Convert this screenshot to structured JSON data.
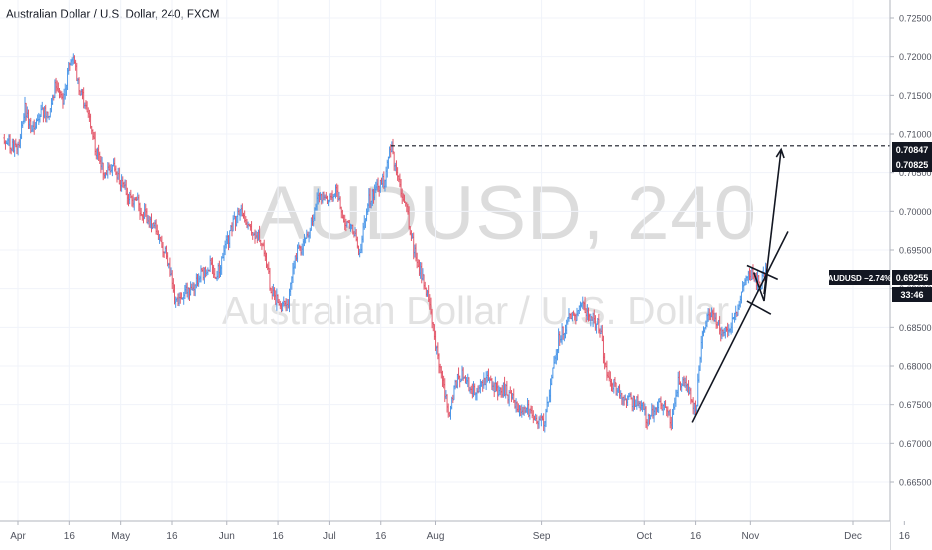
{
  "header": {
    "title": "Australian Dollar / U.S. Dollar, 240, FXCM"
  },
  "watermark": {
    "symbol": "AUDUSD, 240",
    "description": "Australian Dollar / U.S. Dollar"
  },
  "chart_data": {
    "type": "bar",
    "style": "ohlc",
    "title": "Australian Dollar / U.S. Dollar, 240, FXCM",
    "xlabel": "",
    "ylabel": "",
    "ylim": [
      0.664,
      0.727
    ],
    "grid": true,
    "colors": {
      "up": "#4c97e8",
      "down": "#e3586a",
      "axis_text": "#50535e",
      "grid": "#f0f3fa",
      "line": "#131722"
    },
    "y_ticks": [
      "0.72500",
      "0.72000",
      "0.71500",
      "0.71000",
      "0.70500",
      "0.70000",
      "0.69500",
      "0.69000",
      "0.68500",
      "0.68000",
      "0.67500",
      "0.67000",
      "0.66500"
    ],
    "x_ticks": [
      "Apr",
      "16",
      "May",
      "16",
      "Jun",
      "16",
      "Jul",
      "16",
      "Aug",
      "Sep",
      "Oct",
      "16",
      "Nov",
      "Dec",
      "16"
    ],
    "price_path": [
      [
        "2019-03-28",
        0.7095
      ],
      [
        "2019-04-01",
        0.708
      ],
      [
        "2019-04-03",
        0.7135
      ],
      [
        "2019-04-05",
        0.71
      ],
      [
        "2019-04-08",
        0.713
      ],
      [
        "2019-04-10",
        0.7125
      ],
      [
        "2019-04-12",
        0.7165
      ],
      [
        "2019-04-14",
        0.714
      ],
      [
        "2019-04-16",
        0.719
      ],
      [
        "2019-04-17",
        0.72
      ],
      [
        "2019-04-19",
        0.716
      ],
      [
        "2019-04-22",
        0.712
      ],
      [
        "2019-04-24",
        0.7075
      ],
      [
        "2019-04-26",
        0.705
      ],
      [
        "2019-04-29",
        0.7055
      ],
      [
        "2019-05-01",
        0.704
      ],
      [
        "2019-05-03",
        0.702
      ],
      [
        "2019-05-06",
        0.701
      ],
      [
        "2019-05-08",
        0.6995
      ],
      [
        "2019-05-10",
        0.6985
      ],
      [
        "2019-05-13",
        0.696
      ],
      [
        "2019-05-15",
        0.693
      ],
      [
        "2019-05-17",
        0.688
      ],
      [
        "2019-05-20",
        0.6895
      ],
      [
        "2019-05-22",
        0.69
      ],
      [
        "2019-05-24",
        0.6915
      ],
      [
        "2019-05-27",
        0.693
      ],
      [
        "2019-05-29",
        0.6915
      ],
      [
        "2019-05-31",
        0.6945
      ],
      [
        "2019-06-03",
        0.6985
      ],
      [
        "2019-06-05",
        0.7
      ],
      [
        "2019-06-07",
        0.698
      ],
      [
        "2019-06-10",
        0.697
      ],
      [
        "2019-06-12",
        0.695
      ],
      [
        "2019-06-14",
        0.6895
      ],
      [
        "2019-06-17",
        0.6875
      ],
      [
        "2019-06-19",
        0.688
      ],
      [
        "2019-06-21",
        0.6945
      ],
      [
        "2019-06-24",
        0.696
      ],
      [
        "2019-06-26",
        0.699
      ],
      [
        "2019-06-28",
        0.702
      ],
      [
        "2019-07-01",
        0.701
      ],
      [
        "2019-07-03",
        0.703
      ],
      [
        "2019-07-05",
        0.699
      ],
      [
        "2019-07-08",
        0.6975
      ],
      [
        "2019-07-10",
        0.6945
      ],
      [
        "2019-07-12",
        0.701
      ],
      [
        "2019-07-15",
        0.703
      ],
      [
        "2019-07-17",
        0.704
      ],
      [
        "2019-07-19",
        0.7082
      ],
      [
        "2019-07-22",
        0.7025
      ],
      [
        "2019-07-24",
        0.6995
      ],
      [
        "2019-07-26",
        0.6945
      ],
      [
        "2019-07-29",
        0.6905
      ],
      [
        "2019-07-31",
        0.686
      ],
      [
        "2019-08-02",
        0.68
      ],
      [
        "2019-08-05",
        0.6735
      ],
      [
        "2019-08-07",
        0.678
      ],
      [
        "2019-08-09",
        0.679
      ],
      [
        "2019-08-12",
        0.6765
      ],
      [
        "2019-08-14",
        0.6775
      ],
      [
        "2019-08-16",
        0.6785
      ],
      [
        "2019-08-19",
        0.677
      ],
      [
        "2019-08-21",
        0.677
      ],
      [
        "2019-08-23",
        0.676
      ],
      [
        "2019-08-26",
        0.674
      ],
      [
        "2019-08-28",
        0.6745
      ],
      [
        "2019-08-30",
        0.6735
      ],
      [
        "2019-09-02",
        0.6725
      ],
      [
        "2019-09-04",
        0.679
      ],
      [
        "2019-09-06",
        0.6835
      ],
      [
        "2019-09-09",
        0.686
      ],
      [
        "2019-09-11",
        0.6865
      ],
      [
        "2019-09-13",
        0.688
      ],
      [
        "2019-09-16",
        0.686
      ],
      [
        "2019-09-18",
        0.685
      ],
      [
        "2019-09-20",
        0.679
      ],
      [
        "2019-09-23",
        0.677
      ],
      [
        "2019-09-25",
        0.676
      ],
      [
        "2019-09-27",
        0.6755
      ],
      [
        "2019-09-30",
        0.675
      ],
      [
        "2019-10-02",
        0.673
      ],
      [
        "2019-10-04",
        0.6745
      ],
      [
        "2019-10-07",
        0.675
      ],
      [
        "2019-10-09",
        0.673
      ],
      [
        "2019-10-11",
        0.678
      ],
      [
        "2019-10-14",
        0.677
      ],
      [
        "2019-10-16",
        0.674
      ],
      [
        "2019-10-18",
        0.685
      ],
      [
        "2019-10-20",
        0.687
      ],
      [
        "2019-10-22",
        0.686
      ],
      [
        "2019-10-24",
        0.684
      ],
      [
        "2019-10-26",
        0.685
      ],
      [
        "2019-10-28",
        0.687
      ],
      [
        "2019-10-30",
        0.69
      ],
      [
        "2019-11-01",
        0.692
      ],
      [
        "2019-11-03",
        0.691
      ],
      [
        "2019-11-04",
        0.6903
      ],
      [
        "2019-11-05",
        0.6918
      ],
      [
        "2019-11-06",
        0.6926
      ]
    ],
    "annotations": {
      "resistance_level": {
        "label": "0.70847",
        "value": 0.70847,
        "from": "2019-07-19",
        "to": "2019-11-29"
      },
      "trendline": {
        "from": [
          "2019-10-15",
          0.6727
        ],
        "to": [
          "2019-11-12",
          0.6974
        ]
      },
      "flag": [
        {
          "from": [
            "2019-10-31",
            0.693
          ],
          "to": [
            "2019-11-09",
            0.6912
          ]
        },
        {
          "from": [
            "2019-10-31",
            0.6884
          ],
          "to": [
            "2019-11-07",
            0.6867
          ]
        },
        {
          "from": [
            "2019-11-02",
            0.6921
          ],
          "to": [
            "2019-11-05",
            0.6884
          ]
        },
        {
          "from": [
            "2019-11-05",
            0.6884
          ],
          "to": [
            "2019-11-06",
            0.6923
          ]
        }
      ],
      "projection_arrow": {
        "from": [
          "2019-11-05",
          0.6893
        ],
        "to": [
          "2019-11-10",
          0.708
        ]
      }
    },
    "price_labels": {
      "level_top": "0.70847",
      "level_bottom": "0.70825",
      "current_symbol": "AUDUSD −2.74%",
      "current_price": "0.69255",
      "countdown": "33:46"
    }
  }
}
